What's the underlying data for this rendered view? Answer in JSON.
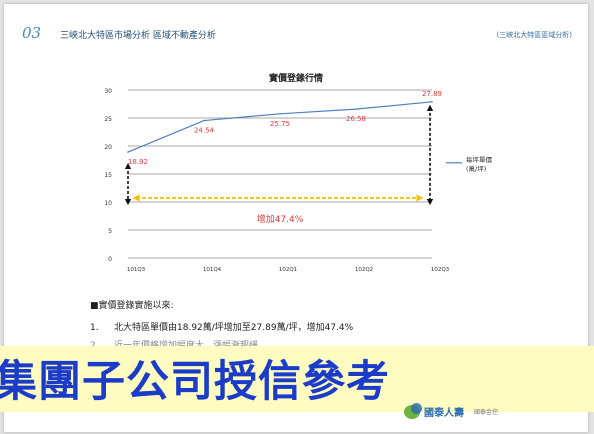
{
  "slide": {
    "number": "03",
    "title": "三峽北大特區市場分析 區域不動產分析",
    "reference": "(三峽北大特區區域分析)"
  },
  "chart_data": {
    "type": "line",
    "title": "實價登錄行情",
    "categories": [
      "101Q3",
      "101Q4",
      "102Q1",
      "102Q2",
      "102Q3"
    ],
    "series": [
      {
        "name": "每坪單價 (萬/坪)",
        "values": [
          18.92,
          24.54,
          25.75,
          26.58,
          27.89
        ],
        "color": "#4f81bd"
      }
    ],
    "data_labels": [
      "18.92",
      "24.54",
      "25.75",
      "26.58",
      "27.89"
    ],
    "ylim": [
      0,
      30
    ],
    "yticks": [
      0,
      5,
      10,
      15,
      20,
      25,
      30
    ],
    "ytick_labels": [
      "0",
      "5",
      "10",
      "15",
      "20",
      "25",
      "30"
    ],
    "grid": true,
    "legend_position": "right",
    "label_color": "#e8383d",
    "annotation": {
      "text": "增加47.4%",
      "color": "#e8383d",
      "arrow_color": "#f2c200",
      "bracket_color": "#111111",
      "y_level": 10
    }
  },
  "notes": {
    "heading": "■實價登錄實施以來:",
    "items": [
      {
        "num": "1.",
        "text": "北大特區單價由18.92萬/坪增加至27.89萬/坪，增加47.4%"
      },
      {
        "num": "2.",
        "text": "近一年價格增加幅度大，漲幅漸趨緩"
      }
    ]
  },
  "banner": {
    "text": "集團子公司授信參考",
    "color": "#1a3cc9"
  },
  "logo": {
    "name": "國泰人壽",
    "subtitle": "國泰金控"
  }
}
